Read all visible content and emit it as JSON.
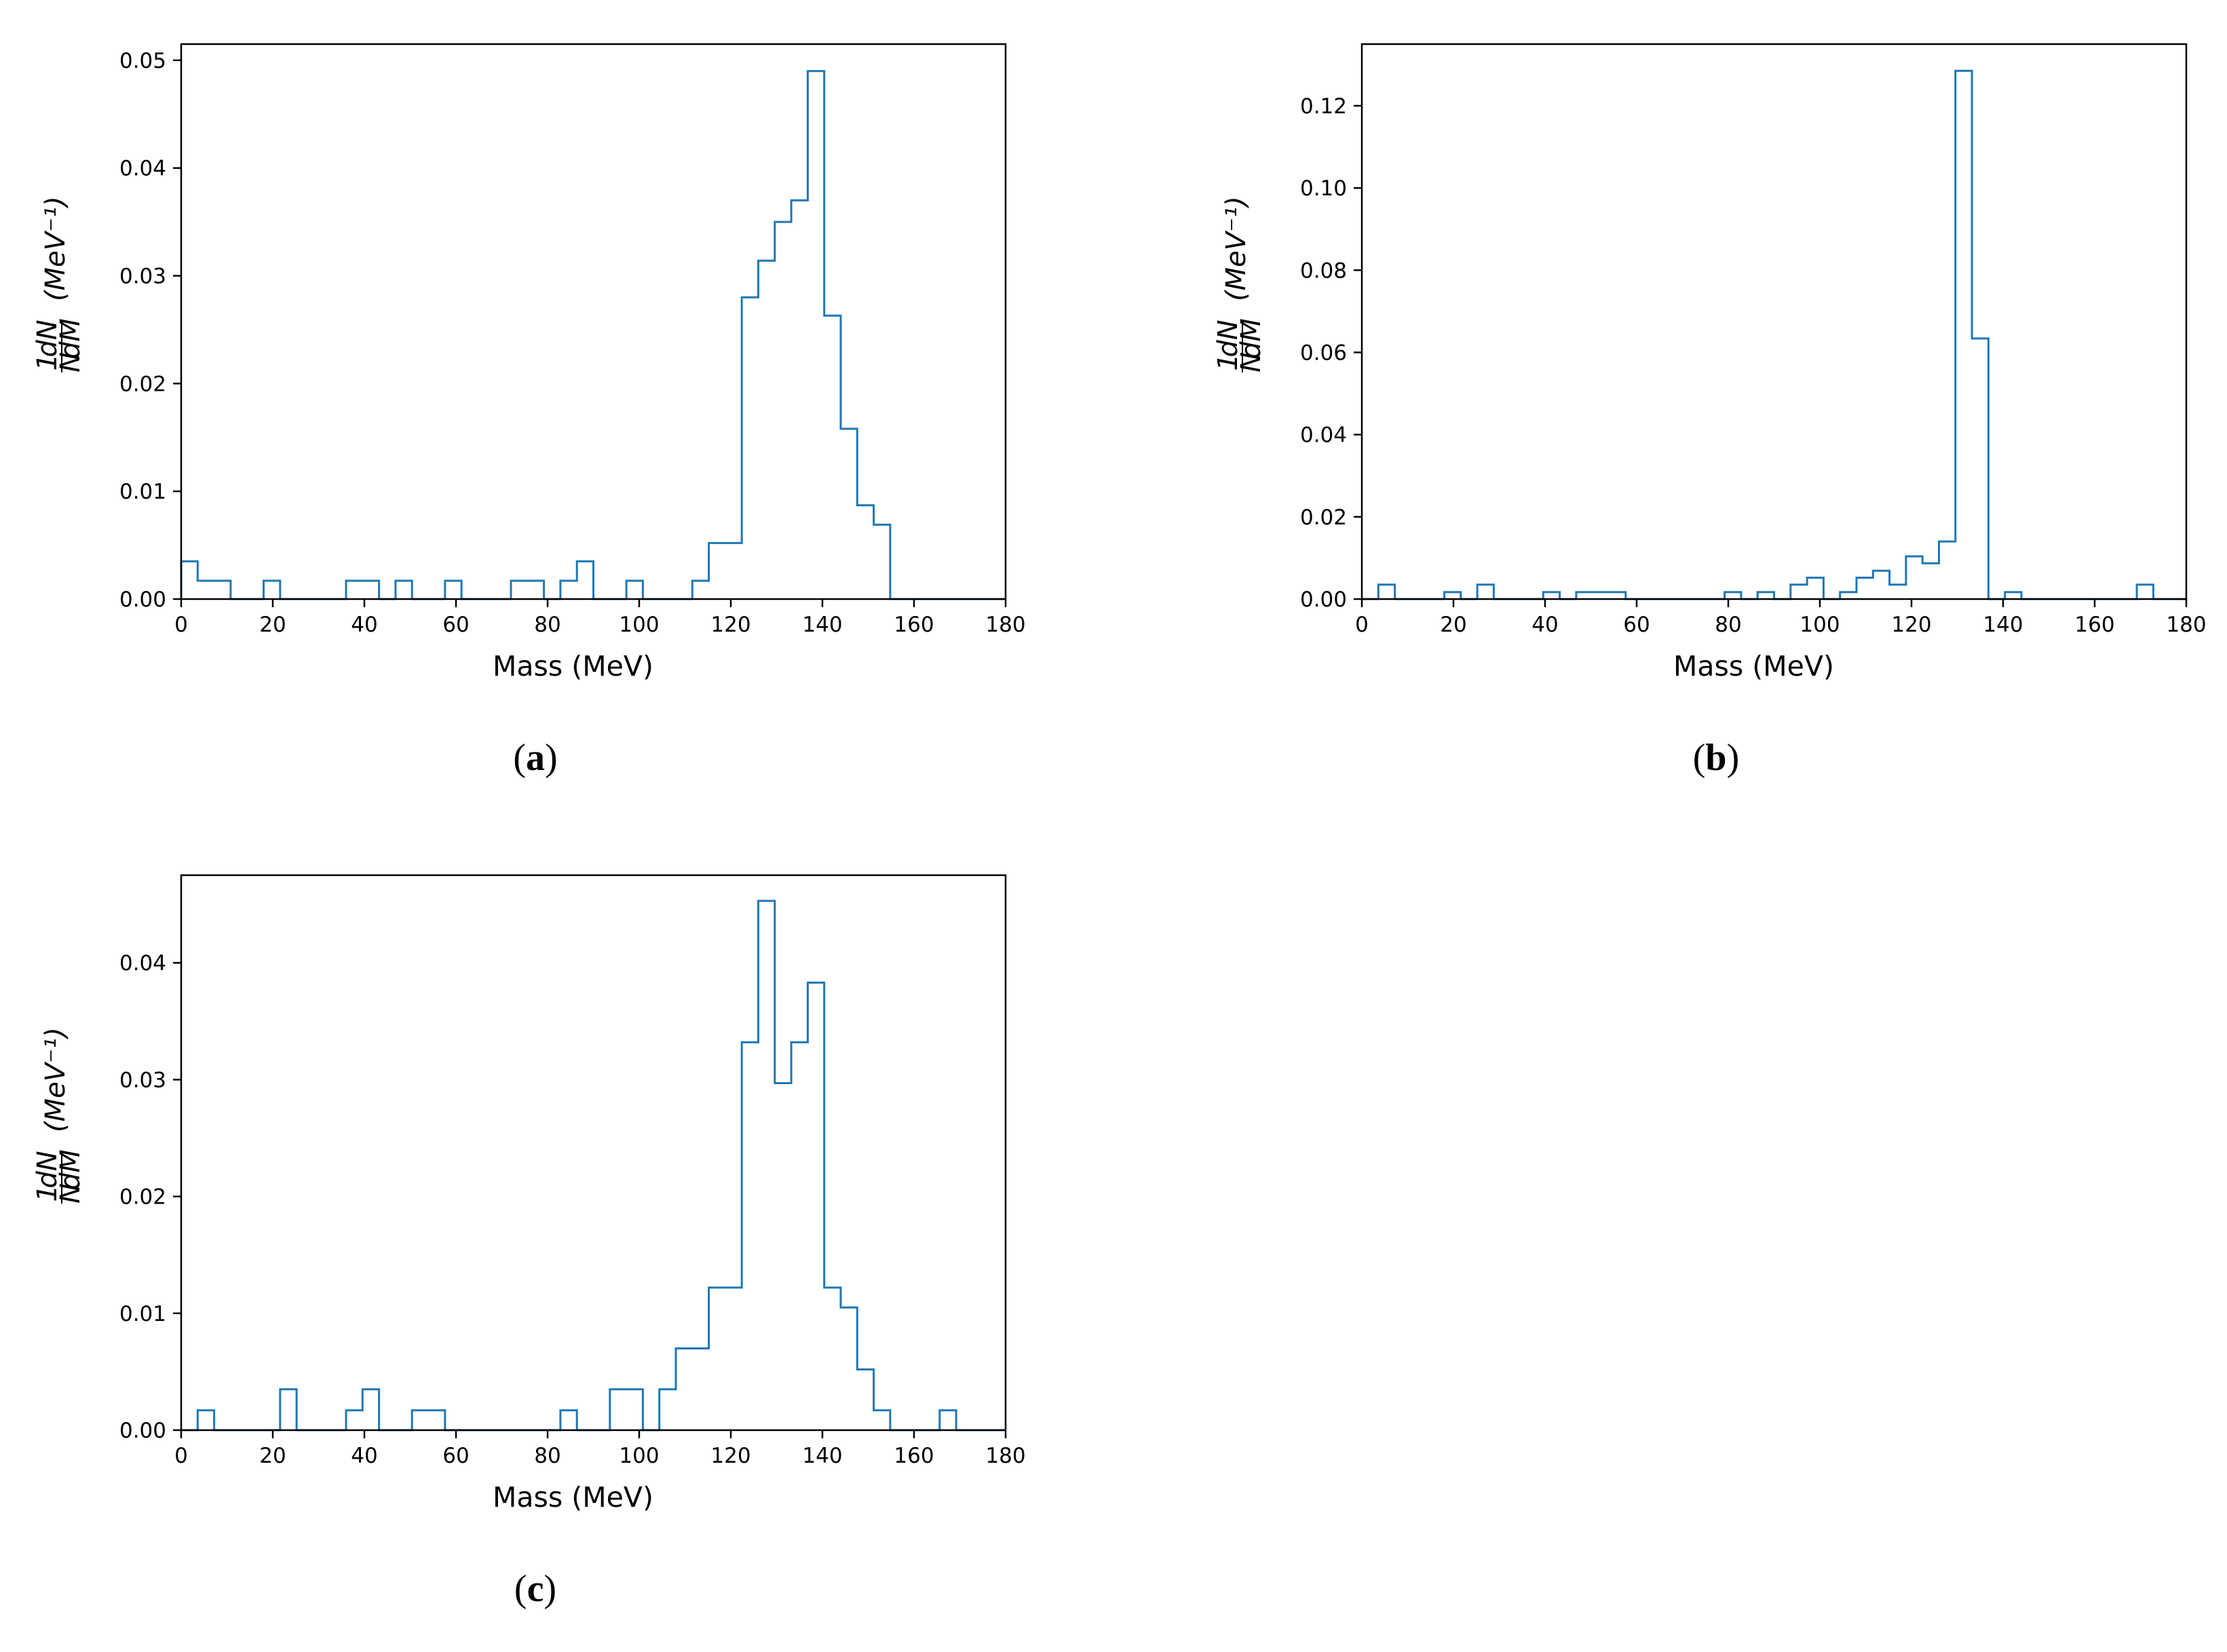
{
  "chart_data": [
    {
      "type": "bar",
      "caption": "a",
      "xlabel": "Mass (MeV)",
      "ylabel_fraction": "1 dN / N dM",
      "ylabel_unit": "(MeV⁻¹)",
      "xlim": [
        0,
        180
      ],
      "ylim": [
        0,
        0.0515
      ],
      "xticks": [
        "0",
        "20",
        "40",
        "60",
        "80",
        "100",
        "120",
        "140",
        "160",
        "180"
      ],
      "yticks": [
        "0.00",
        "0.01",
        "0.02",
        "0.03",
        "0.04",
        "0.05"
      ],
      "ytick_values": [
        0,
        0.01,
        0.02,
        0.03,
        0.04,
        0.05
      ],
      "bin_width": 3.6,
      "bin_start": 0,
      "values": [
        0.0035,
        0.0017,
        0.0017,
        0,
        0,
        0.0017,
        0,
        0,
        0,
        0,
        0.0017,
        0.0017,
        0,
        0.0017,
        0,
        0,
        0.0017,
        0,
        0,
        0,
        0.0017,
        0.0017,
        0,
        0.0017,
        0.0035,
        0,
        0,
        0.0017,
        0,
        0,
        0,
        0.0017,
        0.0052,
        0.0052,
        0.028,
        0.0314,
        0.035,
        0.037,
        0.049,
        0.0263,
        0.0158,
        0.0087,
        0.0069,
        0,
        0,
        0,
        0,
        0,
        0,
        0
      ],
      "color": "#1f77b4"
    },
    {
      "type": "bar",
      "caption": "b",
      "xlabel": "Mass (MeV)",
      "ylabel_fraction": "1 dN / N dM",
      "ylabel_unit": "(MeV⁻¹)",
      "xlim": [
        0,
        180
      ],
      "ylim": [
        0,
        0.135
      ],
      "xticks": [
        "0",
        "20",
        "40",
        "60",
        "80",
        "100",
        "120",
        "140",
        "160",
        "180"
      ],
      "yticks": [
        "0.00",
        "0.02",
        "0.04",
        "0.06",
        "0.08",
        "0.10",
        "0.12"
      ],
      "ytick_values": [
        0,
        0.02,
        0.04,
        0.06,
        0.08,
        0.1,
        0.12
      ],
      "bin_width": 3.6,
      "bin_start": 0,
      "values": [
        0,
        0.0035,
        0,
        0,
        0,
        0.0017,
        0,
        0.0035,
        0,
        0,
        0,
        0.0017,
        0,
        0.0017,
        0.0017,
        0.0017,
        0,
        0,
        0,
        0,
        0,
        0,
        0.0017,
        0,
        0.0017,
        0,
        0.0035,
        0.0052,
        0,
        0.0017,
        0.0052,
        0.0069,
        0.0035,
        0.0104,
        0.0087,
        0.014,
        0.1285,
        0.0634,
        0,
        0.0017,
        0,
        0,
        0,
        0,
        0,
        0,
        0,
        0.0035,
        0,
        0
      ],
      "color": "#1f77b4"
    },
    {
      "type": "bar",
      "caption": "c",
      "xlabel": "Mass (MeV)",
      "ylabel_fraction": "1 dN / N dM",
      "ylabel_unit": "(MeV⁻¹)",
      "xlim": [
        0,
        180
      ],
      "ylim": [
        0,
        0.0475
      ],
      "xticks": [
        "0",
        "20",
        "40",
        "60",
        "80",
        "100",
        "120",
        "140",
        "160",
        "180"
      ],
      "yticks": [
        "0.00",
        "0.01",
        "0.02",
        "0.03",
        "0.04"
      ],
      "ytick_values": [
        0,
        0.01,
        0.02,
        0.03,
        0.04
      ],
      "bin_width": 3.6,
      "bin_start": 0,
      "values": [
        0,
        0.0017,
        0,
        0,
        0,
        0,
        0.0035,
        0,
        0,
        0,
        0.0017,
        0.0035,
        0,
        0,
        0.0017,
        0.0017,
        0,
        0,
        0,
        0,
        0,
        0,
        0,
        0.0017,
        0,
        0,
        0.0035,
        0.0035,
        0,
        0.0035,
        0.007,
        0.007,
        0.0122,
        0.0122,
        0.0332,
        0.0453,
        0.0297,
        0.0332,
        0.0383,
        0.0122,
        0.0105,
        0.0052,
        0.0017,
        0,
        0,
        0,
        0.0017,
        0,
        0,
        0
      ],
      "color": "#1f77b4"
    }
  ]
}
